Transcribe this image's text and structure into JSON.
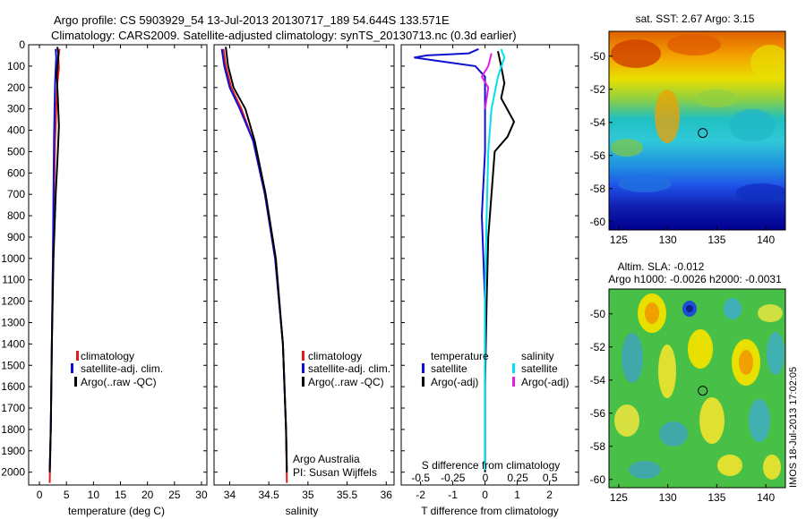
{
  "header": {
    "line1": "Argo profile: CS 5903929_54 13-Jul-2013 20130717_189 54.644S 133.571E",
    "line2": "Climatology: CARS2009. Satellite-adjusted climatology: synTS_20130713.nc (0.3d earlier)"
  },
  "depth_ticks": [
    "0",
    "100",
    "200",
    "300",
    "400",
    "500",
    "600",
    "700",
    "800",
    "900",
    "1000",
    "1100",
    "1200",
    "1300",
    "1400",
    "1500",
    "1600",
    "1700",
    "1800",
    "1900",
    "2000"
  ],
  "colors": {
    "climatology": "#e41a1c",
    "satellite": "#1010d0",
    "argo": "#000000",
    "sal_satellite": "#00e0f0",
    "sal_argo": "#e020e0"
  },
  "chart_data": [
    {
      "type": "line",
      "panel": "temperature",
      "xlabel": "temperature (deg C)",
      "xticks": [
        "0",
        "5",
        "10",
        "15",
        "20",
        "25",
        "30"
      ],
      "xlim": [
        -2,
        31
      ],
      "ylim": [
        2060,
        0
      ],
      "legend": [
        "climatology",
        "satellite-adj. clim.",
        "Argo(..raw -QC)"
      ],
      "series": [
        {
          "name": "climatology",
          "color": "red",
          "points": [
            [
              3.7,
              20
            ],
            [
              3.5,
              60
            ],
            [
              3.6,
              110
            ],
            [
              3.3,
              180
            ],
            [
              3.1,
              300
            ],
            [
              2.9,
              450
            ],
            [
              2.7,
              700
            ],
            [
              2.5,
              1000
            ],
            [
              2.3,
              1400
            ],
            [
              2.1,
              1800
            ],
            [
              1.9,
              2050
            ]
          ]
        },
        {
          "name": "satellite-adj. clim.",
          "color": "blue",
          "points": [
            [
              3.0,
              20
            ],
            [
              3.1,
              60
            ],
            [
              3.0,
              110
            ],
            [
              2.9,
              180
            ],
            [
              2.8,
              300
            ],
            [
              2.7,
              450
            ],
            [
              2.6,
              700
            ],
            [
              2.5,
              1000
            ],
            [
              2.3,
              1400
            ],
            [
              2.1,
              1800
            ],
            [
              1.9,
              1990
            ]
          ]
        },
        {
          "name": "Argo(..raw -QC)",
          "color": "black",
          "points": [
            [
              3.3,
              10
            ],
            [
              3.5,
              40
            ],
            [
              3.4,
              80
            ],
            [
              3.2,
              140
            ],
            [
              3.4,
              250
            ],
            [
              3.6,
              380
            ],
            [
              3.4,
              500
            ],
            [
              3.0,
              700
            ],
            [
              2.6,
              1000
            ],
            [
              2.3,
              1400
            ],
            [
              2.1,
              1800
            ],
            [
              1.9,
              2000
            ]
          ]
        }
      ]
    },
    {
      "type": "line",
      "panel": "salinity",
      "xlabel": "salinity",
      "xticks": [
        "34",
        "34.5",
        "35",
        "35.5",
        "36"
      ],
      "xlim": [
        33.8,
        36.1
      ],
      "ylim": [
        2060,
        0
      ],
      "legend": [
        "climatology",
        "satellite-adj. clim.",
        "Argo(..raw -QC)"
      ],
      "annotation": [
        "Argo Australia",
        "PI: Susan Wijffels"
      ],
      "series": [
        {
          "name": "climatology",
          "color": "red",
          "points": [
            [
              33.92,
              20
            ],
            [
              33.95,
              100
            ],
            [
              34.02,
              200
            ],
            [
              34.15,
              300
            ],
            [
              34.3,
              450
            ],
            [
              34.45,
              700
            ],
            [
              34.58,
              1000
            ],
            [
              34.68,
              1400
            ],
            [
              34.72,
              1800
            ],
            [
              34.73,
              2050
            ]
          ]
        },
        {
          "name": "satellite-adj. clim.",
          "color": "blue",
          "points": [
            [
              33.9,
              20
            ],
            [
              33.93,
              100
            ],
            [
              34.0,
              200
            ],
            [
              34.13,
              300
            ],
            [
              34.3,
              450
            ],
            [
              34.45,
              700
            ],
            [
              34.58,
              1000
            ],
            [
              34.68,
              1400
            ],
            [
              34.72,
              1800
            ],
            [
              34.73,
              1990
            ]
          ]
        },
        {
          "name": "Argo(..raw -QC)",
          "color": "black",
          "points": [
            [
              33.95,
              10
            ],
            [
              33.98,
              100
            ],
            [
              34.05,
              200
            ],
            [
              34.2,
              300
            ],
            [
              34.32,
              450
            ],
            [
              34.46,
              700
            ],
            [
              34.59,
              1000
            ],
            [
              34.68,
              1400
            ],
            [
              34.72,
              1800
            ],
            [
              34.73,
              2000
            ]
          ]
        }
      ]
    },
    {
      "type": "line",
      "panel": "difference",
      "xlabel": "T difference from climatology",
      "xlabel_top": "S difference from climatology",
      "xticks": [
        "-2",
        "-1",
        "0",
        "1",
        "2"
      ],
      "xticks_s": [
        "-0.5",
        "-0.25",
        "0",
        "0.25",
        "0.5"
      ],
      "xlim": [
        -2.6,
        2.9
      ],
      "ylim": [
        2060,
        0
      ],
      "legend_t_title": "temperature",
      "legend_s_title": "salinity",
      "legend_t": [
        "satellite",
        "Argo(-adj)"
      ],
      "legend_s": [
        "satellite",
        "Argo(-adj)"
      ],
      "series": [
        {
          "name": "satellite",
          "color": "blue",
          "points": [
            [
              -0.2,
              20
            ],
            [
              -0.5,
              40
            ],
            [
              -1.8,
              50
            ],
            [
              -2.2,
              60
            ],
            [
              -1.5,
              75
            ],
            [
              -0.3,
              100
            ],
            [
              0,
              150
            ],
            [
              0,
              300
            ],
            [
              0,
              500
            ],
            [
              -0.1,
              800
            ],
            [
              0,
              1200
            ],
            [
              0,
              1600
            ],
            [
              0,
              1950
            ]
          ]
        },
        {
          "name": "Argo(-adj)",
          "color": "black",
          "points": [
            [
              0.4,
              30
            ],
            [
              0.5,
              100
            ],
            [
              0.6,
              180
            ],
            [
              0.5,
              250
            ],
            [
              0.9,
              360
            ],
            [
              0.7,
              430
            ],
            [
              0.3,
              500
            ],
            [
              0.2,
              700
            ],
            [
              0.1,
              900
            ],
            [
              0.05,
              1200
            ],
            [
              0,
              1600
            ],
            [
              0,
              2000
            ]
          ]
        },
        {
          "name": "satellite",
          "color": "cyan",
          "points": [
            [
              0.5,
              20
            ],
            [
              0.6,
              60
            ],
            [
              0.4,
              150
            ],
            [
              0.2,
              300
            ],
            [
              0.1,
              500
            ],
            [
              0.05,
              800
            ],
            [
              0,
              1200
            ],
            [
              0,
              1600
            ],
            [
              0,
              1990
            ]
          ]
        },
        {
          "name": "Argo(-adj)",
          "color": "magenta",
          "points": [
            [
              0.2,
              40
            ],
            [
              0.1,
              100
            ],
            [
              -0.1,
              150
            ],
            [
              0.1,
              200
            ],
            [
              0,
              300
            ]
          ]
        }
      ]
    }
  ],
  "maps": [
    {
      "title": "sat. SST: 2.67 Argo: 3.15",
      "xticks": [
        "125",
        "130",
        "135",
        "140"
      ],
      "yticks": [
        "-50",
        "-52",
        "-54",
        "-56",
        "-58",
        "-60"
      ],
      "xlim": [
        124,
        142
      ],
      "ylim": [
        -60.5,
        -48.5
      ],
      "marker": {
        "lon": 133.57,
        "lat": -54.64
      }
    },
    {
      "title": "Altim. SLA: -0.012",
      "subtitle": "Argo h1000: -0.0026 h2000: -0.0031",
      "xticks": [
        "125",
        "130",
        "135",
        "140"
      ],
      "yticks": [
        "-50",
        "-52",
        "-54",
        "-56",
        "-58",
        "-60"
      ],
      "xlim": [
        124,
        142
      ],
      "ylim": [
        -60.5,
        -48.5
      ],
      "marker": {
        "lon": 133.57,
        "lat": -54.64
      }
    }
  ],
  "side_label": "IMOS 18-Jul-2013 17:02:05"
}
